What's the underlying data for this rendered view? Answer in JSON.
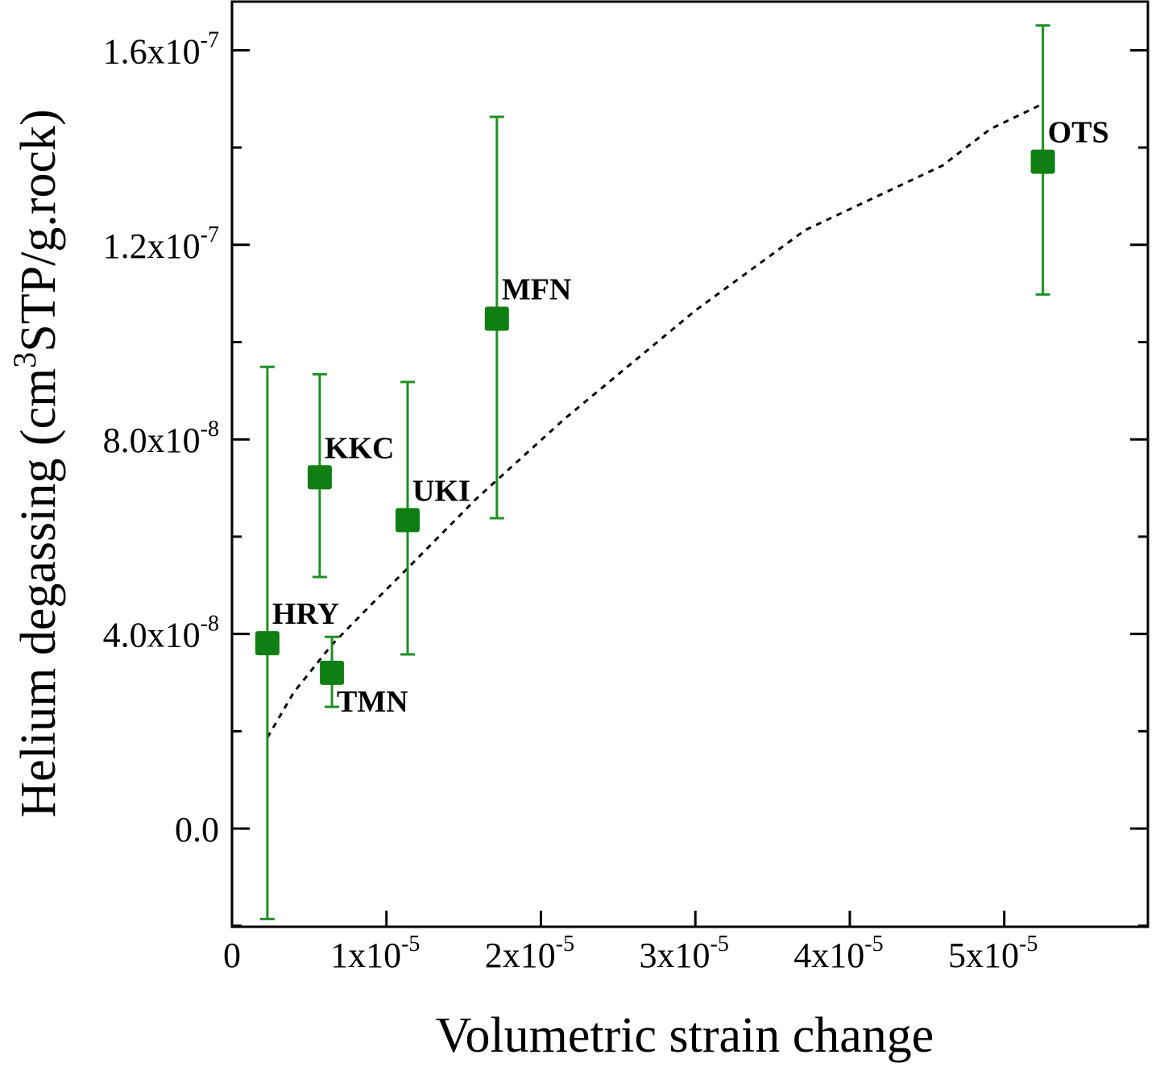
{
  "chart_data": {
    "type": "scatter",
    "xlabel": "Volumetric strain change",
    "ylabel": {
      "prefix": "Helium degassing (cm",
      "sup": "3",
      "suffix": "STP/g.rock)"
    },
    "xlim": [
      0,
      5.93e-05
    ],
    "ylim": [
      -2.02e-08,
      1.7e-07
    ],
    "grid": false,
    "x_ticks": [
      {
        "value": 0,
        "text": "0",
        "exp": ""
      },
      {
        "value": 1e-05,
        "text": "1x10",
        "exp": "-5"
      },
      {
        "value": 2e-05,
        "text": "2x10",
        "exp": "-5"
      },
      {
        "value": 3e-05,
        "text": "3x10",
        "exp": "-5"
      },
      {
        "value": 4e-05,
        "text": "4x10",
        "exp": "-5"
      },
      {
        "value": 5e-05,
        "text": "5x10",
        "exp": "-5"
      }
    ],
    "y_ticks": [
      {
        "value": 0,
        "text": "0.0",
        "exp": ""
      },
      {
        "value": 4e-08,
        "text": "4.0x10",
        "exp": "-8"
      },
      {
        "value": 8e-08,
        "text": "8.0x10",
        "exp": "-8"
      },
      {
        "value": 1.2e-07,
        "text": "1.2x10",
        "exp": "-7"
      },
      {
        "value": 1.6e-07,
        "text": "1.6x10",
        "exp": "-7"
      }
    ],
    "marker_color": "#0f7f14",
    "errorbar_color": "#1f8f24",
    "points": [
      {
        "label": "HRY",
        "x": 2.29e-06,
        "y": 3.81e-08,
        "err_high": 9.49e-08,
        "err_low": -1.86e-08,
        "label_pos": "above-right"
      },
      {
        "label": "KKC",
        "x": 5.68e-06,
        "y": 7.22e-08,
        "err_high": 9.34e-08,
        "err_low": 5.17e-08,
        "label_pos": "above-right"
      },
      {
        "label": "TMN",
        "x": 6.47e-06,
        "y": 3.2e-08,
        "err_high": 3.94e-08,
        "err_low": 2.5e-08,
        "label_pos": "below-right"
      },
      {
        "label": "UKI",
        "x": 1.137e-05,
        "y": 6.34e-08,
        "err_high": 9.18e-08,
        "err_low": 3.58e-08,
        "label_pos": "above-right"
      },
      {
        "label": "MFN",
        "x": 1.715e-05,
        "y": 1.048e-07,
        "err_high": 1.463e-07,
        "err_low": 6.38e-08,
        "label_pos": "above-right"
      },
      {
        "label": "OTS",
        "x": 5.25e-05,
        "y": 1.371e-07,
        "err_high": 1.651e-07,
        "err_low": 1.098e-07,
        "label_pos": "above-right"
      }
    ],
    "fit_curve": {
      "style": "dashed",
      "color": "#000000",
      "x": [
        2.29e-06,
        4e-06,
        6.47e-06,
        9e-06,
        1.137e-05,
        1.575e-05,
        2.148e-05,
        3e-05,
        3.71e-05,
        4.6e-05,
        4.91e-05,
        5.25e-05
      ],
      "y": [
        1.87e-08,
        2.8e-08,
        3.78e-08,
        4.6e-08,
        5.35e-08,
        6.76e-08,
        8.41e-08,
        1.065e-07,
        1.23e-07,
        1.363e-07,
        1.438e-07,
        1.49e-07
      ]
    }
  }
}
